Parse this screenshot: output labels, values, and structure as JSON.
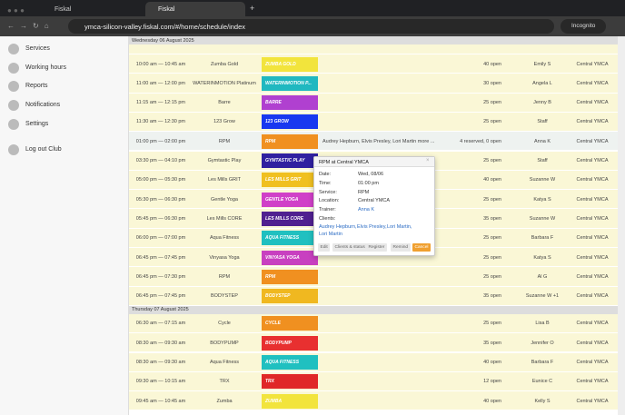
{
  "browser": {
    "tabs": [
      "Fiskal",
      "Fiskal"
    ],
    "url": "ymca-silicon-valley.fiskal.com/#/home/schedule/index",
    "mode": "Incognito"
  },
  "sidebar": {
    "items": [
      "Services",
      "Working hours",
      "Reports",
      "Notifications",
      "Settings"
    ],
    "logout": "Log out Club"
  },
  "schedule": {
    "days": [
      {
        "header": "Wednesday 06 August 2025",
        "rows": [
          [
            "10:00 am — 10:45 am",
            "Zumba Gold",
            "ZUMBA GOLD",
            "",
            "40 open",
            "Emily S",
            "Central YMCA"
          ],
          [
            "11:00 am — 12:00 pm",
            "WATERINMOTION Platinum",
            "WATERINMOTION P...",
            "",
            "30 open",
            "Angela L",
            "Central YMCA"
          ],
          [
            "11:15 am — 12:15 pm",
            "Barre",
            "BARRE",
            "",
            "25 open",
            "Jenny B",
            "Central YMCA"
          ],
          [
            "11:30 am — 12:30 pm",
            "123 Grow",
            "123 GROW",
            "",
            "25 open",
            "Staff",
            "Central YMCA"
          ],
          [
            "01:00 pm — 02:00 pm",
            "RPM",
            "RPM",
            "Audrey Hepburn, Elvis Presley, Lori Martin more ...",
            "4 reserved, 0 open",
            "Anna K",
            "Central YMCA"
          ],
          [
            "03:30 pm — 04:10 pm",
            "Gymtastic Play",
            "GYMTASTIC PLAY",
            "",
            "25 open",
            "Staff",
            "Central YMCA"
          ],
          [
            "05:00 pm — 05:30 pm",
            "Les Mills GRIT",
            "LES MILLS GRIT",
            "",
            "40 open",
            "Suzanne W",
            "Central YMCA"
          ],
          [
            "05:30 pm — 06:30 pm",
            "Gentle Yoga",
            "GENTLE YOGA",
            "",
            "25 open",
            "Katya S",
            "Central YMCA"
          ],
          [
            "05:45 pm — 06:30 pm",
            "Les Mills CORE",
            "LES MILLS CORE",
            "",
            "35 open",
            "Suzanne W",
            "Central YMCA"
          ],
          [
            "06:00 pm — 07:00 pm",
            "Aqua Fitness",
            "AQUA FITNESS",
            "",
            "25 open",
            "Barbara F",
            "Central YMCA"
          ],
          [
            "06:45 pm — 07:45 pm",
            "Vinyasa Yoga",
            "VINYASA YOGA",
            "",
            "25 open",
            "Katya S",
            "Central YMCA"
          ],
          [
            "06:45 pm — 07:30 pm",
            "RPM",
            "RPM",
            "",
            "25 open",
            "Al G",
            "Central YMCA"
          ],
          [
            "06:45 pm — 07:45 pm",
            "BODYSTEP",
            "BODYSTEP",
            "",
            "35 open",
            "Suzanne W +1",
            "Central YMCA"
          ]
        ]
      },
      {
        "header": "Thursday 07 August 2025",
        "rows": [
          [
            "06:30 am — 07:15 am",
            "Cycle",
            "CYCLE",
            "",
            "25 open",
            "Lisa B",
            "Central YMCA"
          ],
          [
            "08:30 am — 09:30 am",
            "BODYPUMP",
            "BODYPUMP",
            "",
            "35 open",
            "Jennifer O",
            "Central YMCA"
          ],
          [
            "08:30 am — 09:30 am",
            "Aqua Fitness",
            "AQUA FITNESS",
            "",
            "40 open",
            "Barbara F",
            "Central YMCA"
          ],
          [
            "09:30 am — 10:15 am",
            "TRX",
            "TRX",
            "",
            "12 open",
            "Eunice C",
            "Central YMCA"
          ],
          [
            "09:45 am — 10:45 am",
            "Zumba",
            "ZUMBA",
            "",
            "40 open",
            "Kelly S",
            "Central YMCA"
          ]
        ]
      }
    ]
  },
  "popup": {
    "title": "RPM at Central YMCA",
    "fields": [
      [
        "Date:",
        "Wed, 08/06"
      ],
      [
        "Time:",
        "01:00 pm"
      ],
      [
        "Service:",
        "RPM"
      ],
      [
        "Location:",
        "Central YMCA"
      ],
      [
        "Trainer:",
        "Anna K"
      ]
    ],
    "clients_label": "Clients:",
    "clients": [
      "Audrey Hepburn,",
      "Elvis Presley,",
      "Lori Martin,",
      "Lori Martin"
    ],
    "buttons": [
      "Edit",
      "Clients & status",
      "Register",
      "Remind",
      "Cancel"
    ]
  }
}
